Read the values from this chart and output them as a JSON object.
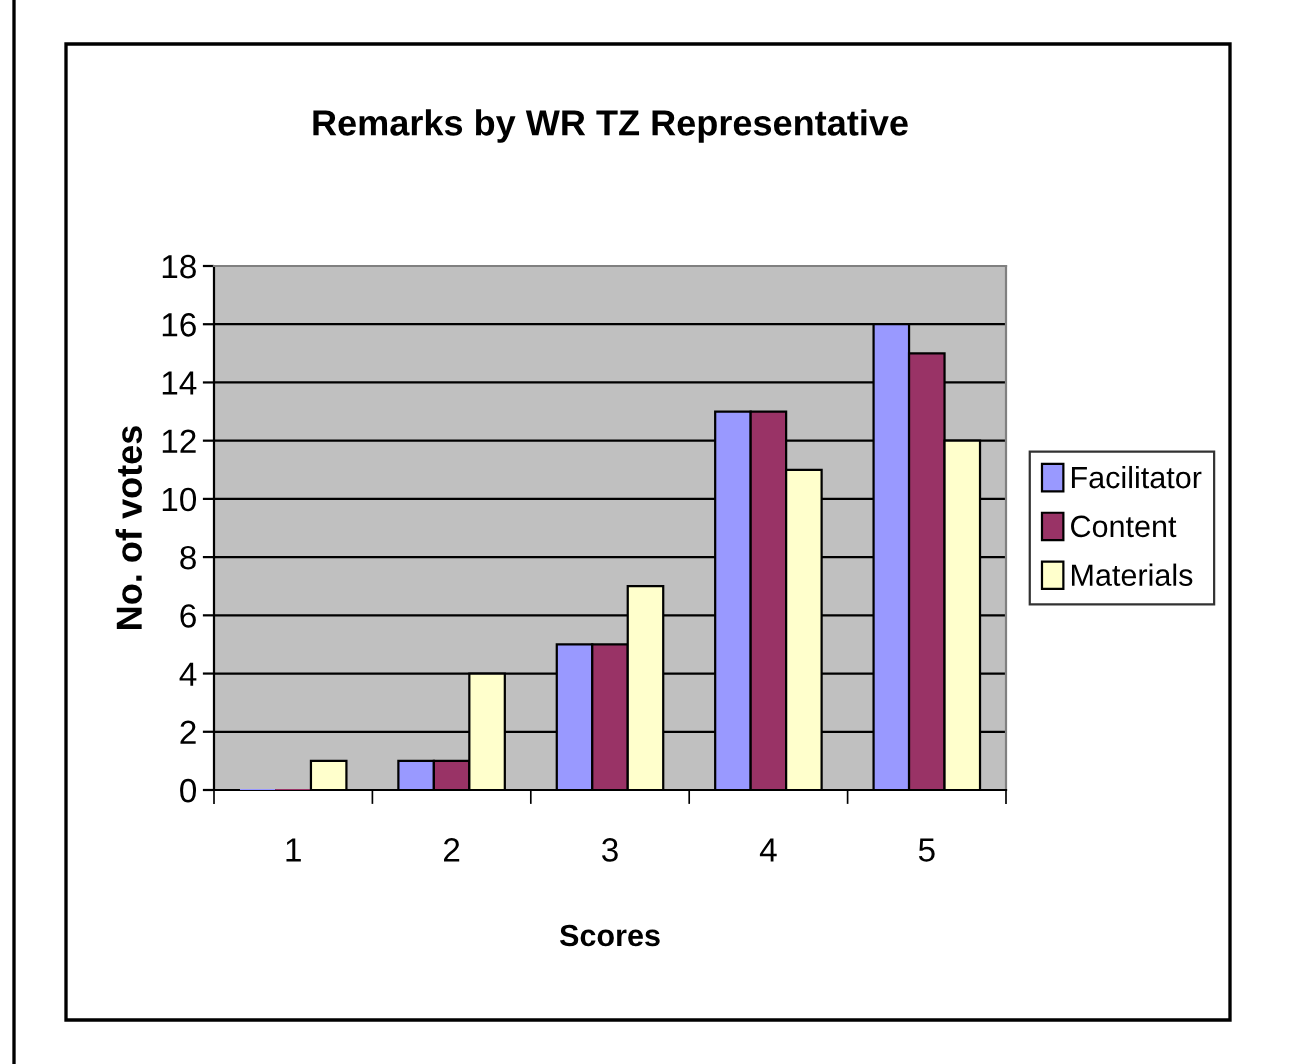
{
  "chart_data": {
    "type": "bar",
    "title": "Remarks by WR TZ Representative",
    "xlabel": "Scores",
    "ylabel": "No. of votes",
    "categories": [
      "1",
      "2",
      "3",
      "4",
      "5"
    ],
    "series": [
      {
        "name": "Facilitator",
        "color": "#9999ff",
        "values": [
          0,
          1,
          5,
          13,
          16
        ]
      },
      {
        "name": "Content",
        "color": "#993366",
        "values": [
          0,
          1,
          5,
          13,
          15
        ]
      },
      {
        "name": "Materials",
        "color": "#ffffcc",
        "values": [
          1,
          4,
          7,
          11,
          12
        ]
      }
    ],
    "ylim": [
      0,
      18
    ],
    "yticks": [
      0,
      2,
      4,
      6,
      8,
      10,
      12,
      14,
      16,
      18
    ],
    "grid": "y",
    "legend": "right"
  }
}
